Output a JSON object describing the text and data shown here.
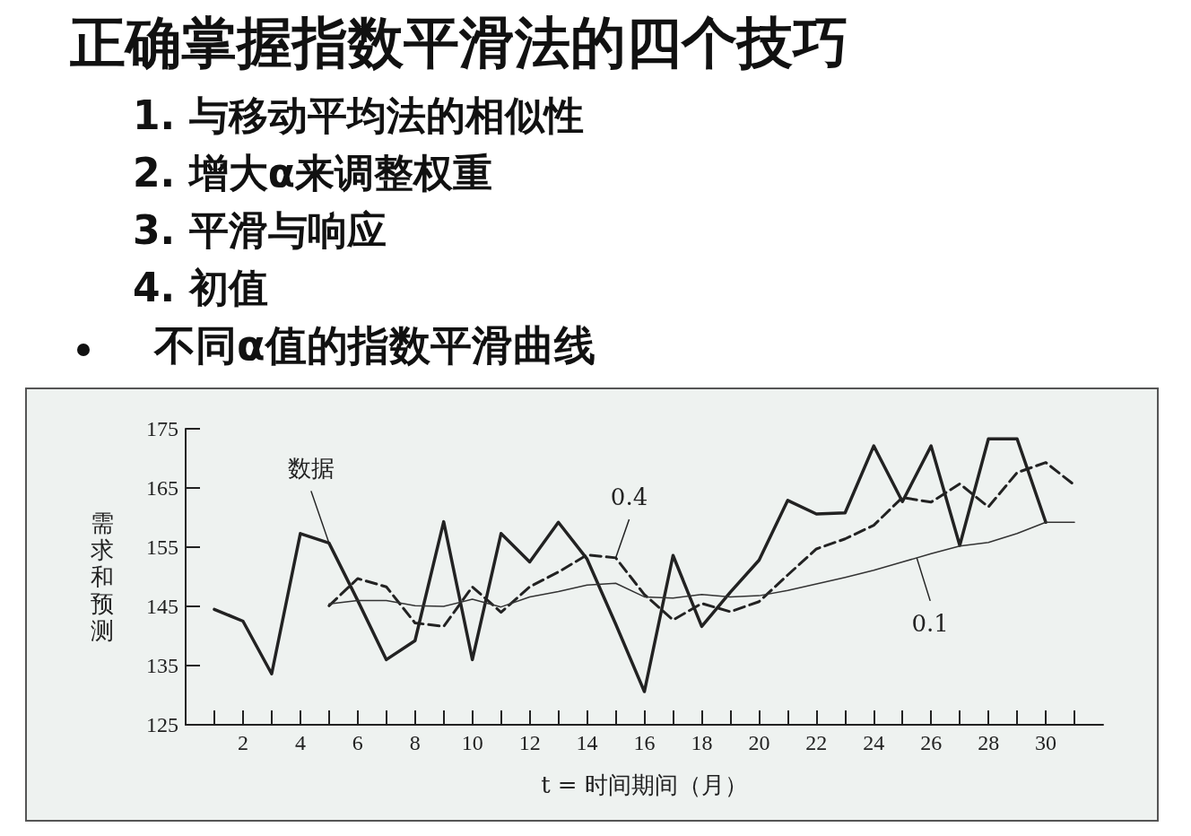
{
  "chart_data": {
    "type": "line",
    "title": "正确掌握指数平滑法的四个技巧",
    "subtitle": "不同α值的指数平滑曲线",
    "xlabel": "t = 时间期间（月）",
    "ylabel": "需求和预测",
    "annotations": [
      "1. 与移动平均法的相似性",
      "2. 增大α来调整权重",
      "3. 平滑与响应",
      "4. 初值",
      {
        "text": "数据",
        "x": 5,
        "y": 155.7
      },
      {
        "text": "0.4",
        "x": 15,
        "y": 153.2
      },
      {
        "text": "0.1",
        "x": 25.5,
        "y": 153.2
      }
    ],
    "xlim": [
      0,
      32
    ],
    "xticks": [
      {
        "value": 1,
        "label": null
      },
      2,
      {
        "value": 3,
        "label": null
      },
      4,
      {
        "value": 5,
        "label": null
      },
      6,
      {
        "value": 7,
        "label": null
      },
      8,
      {
        "value": 9,
        "label": null
      },
      10,
      {
        "value": 11,
        "label": null
      },
      12,
      {
        "value": 13,
        "label": null
      },
      14,
      {
        "value": 15,
        "label": null
      },
      16,
      {
        "value": 17,
        "label": null
      },
      18,
      {
        "value": 19,
        "label": null
      },
      20,
      {
        "value": 21,
        "label": null
      },
      22,
      {
        "value": 23,
        "label": null
      },
      24,
      {
        "value": 25,
        "label": null
      },
      26,
      {
        "value": 27,
        "label": null
      },
      28,
      {
        "value": 29,
        "label": null
      },
      30,
      {
        "value": 31,
        "label": null
      }
    ],
    "ylim": [
      125,
      175
    ],
    "yticks": [
      125,
      135,
      145,
      155,
      165,
      175
    ],
    "grid": false,
    "marker": "none",
    "series": [
      {
        "color": "#222222",
        "line_style": "solid",
        "x": [
          1,
          2,
          3,
          4,
          5,
          6,
          7,
          8,
          9,
          10,
          11,
          12,
          13,
          14,
          15,
          16,
          17,
          18,
          19,
          20,
          21,
          22,
          23,
          24,
          25,
          26,
          27,
          28,
          29,
          30
        ],
        "values": [
          144.5,
          142.5,
          133.6,
          157.3,
          155.7,
          146,
          136,
          139.2,
          159.3,
          136,
          157.3,
          152.5,
          159.2,
          153,
          142,
          130.6,
          153.6,
          141.6,
          147.4,
          152.8,
          162.9,
          160.6,
          160.8,
          172.1,
          162.7,
          172.1,
          155.3,
          173.3,
          173.3,
          159.2
        ]
      },
      {
        "color": "#222222",
        "line_style": "dashed",
        "x": [
          5,
          6,
          7,
          8,
          9,
          10,
          11,
          12,
          13,
          14,
          15,
          16,
          17,
          18,
          19,
          20,
          21,
          22,
          23,
          24,
          25,
          26,
          27,
          28,
          29,
          30,
          31
        ],
        "values": [
          145.1,
          149.7,
          148.3,
          142.2,
          141.6,
          148.3,
          144,
          148.3,
          150.8,
          153.7,
          153.2,
          147,
          142.7,
          145.5,
          144.1,
          145.8,
          150.3,
          154.7,
          156.4,
          158.7,
          163.4,
          162.6,
          165.7,
          161.8,
          167.6,
          169.3,
          165.5
        ]
      },
      {
        "color": "#333333",
        "line_style": "solid",
        "x": [
          5,
          6,
          7,
          8,
          9,
          10,
          11,
          12,
          13,
          14,
          15,
          16,
          17,
          18,
          19,
          20,
          21,
          22,
          23,
          24,
          25,
          26,
          27,
          28,
          29,
          30,
          31
        ],
        "values": [
          145.4,
          146,
          146,
          145.1,
          145,
          146.2,
          144.9,
          146.6,
          147.5,
          148.6,
          148.9,
          146.6,
          146.4,
          147,
          146.6,
          146.8,
          147.7,
          148.8,
          149.9,
          151.1,
          152.5,
          153.9,
          155.2,
          155.8,
          157.3,
          159.2,
          159.2
        ]
      }
    ]
  }
}
